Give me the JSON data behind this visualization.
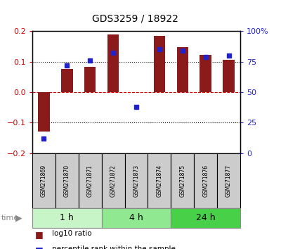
{
  "title": "GDS3259 / 18922",
  "samples": [
    "GSM271869",
    "GSM271870",
    "GSM271871",
    "GSM271872",
    "GSM271873",
    "GSM271874",
    "GSM271875",
    "GSM271876",
    "GSM271877"
  ],
  "log10_ratio": [
    -0.13,
    0.075,
    0.082,
    0.19,
    0.0,
    0.185,
    0.148,
    0.123,
    0.105
  ],
  "percentile_rank": [
    12,
    72,
    76,
    82,
    38,
    85,
    84,
    79,
    80
  ],
  "groups": [
    {
      "label": "1 h",
      "indices": [
        0,
        1,
        2
      ],
      "color": "#c8f5c8"
    },
    {
      "label": "4 h",
      "indices": [
        3,
        4,
        5
      ],
      "color": "#90e890"
    },
    {
      "label": "24 h",
      "indices": [
        6,
        7,
        8
      ],
      "color": "#48d048"
    }
  ],
  "ylim_left": [
    -0.2,
    0.2
  ],
  "ylim_right": [
    0,
    100
  ],
  "bar_color": "#8B1A1A",
  "dot_color": "#2222CC",
  "background_color": "#ffffff",
  "dotted_line_color": "#000000",
  "red_dotted_color": "#CC0000",
  "label_color_left": "#CC0000",
  "label_color_right": "#2222CC",
  "time_label_color": "#888888",
  "sample_box_color": "#cccccc",
  "yticks_left": [
    -0.2,
    -0.1,
    0.0,
    0.1,
    0.2
  ],
  "yticks_right": [
    0,
    25,
    50,
    75,
    100
  ]
}
